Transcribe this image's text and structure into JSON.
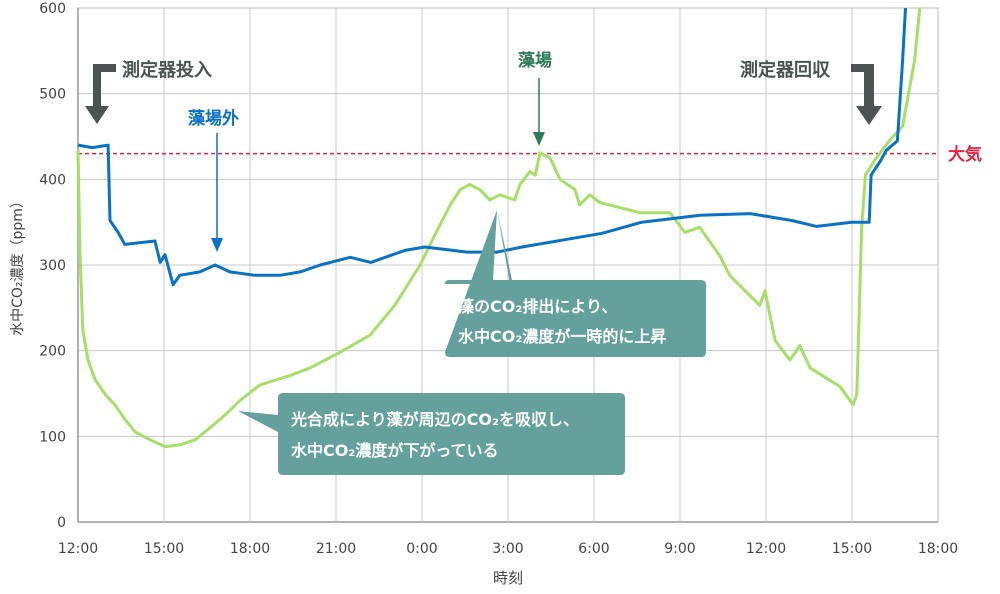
{
  "chart_data": {
    "type": "line",
    "xlabel": "時刻",
    "ylabel": "水中CO₂濃度（ppm）",
    "ylim": [
      0,
      600
    ],
    "yticks": [
      0,
      100,
      200,
      300,
      400,
      500,
      600
    ],
    "xticks": [
      "12:00",
      "15:00",
      "18:00",
      "21:00",
      "0:00",
      "3:00",
      "6:00",
      "9:00",
      "12:00",
      "15:00",
      "18:00"
    ],
    "grid": true,
    "colors": {
      "outside": "#0a72c4",
      "seagrass": "#a6df68",
      "atmosphere": "#e8213f",
      "callout": "#64a09c",
      "marker": "#4d5352",
      "seagrass_label": "#2e7a5a"
    },
    "reference_line": {
      "label": "大気",
      "value": 430
    },
    "series": [
      {
        "name": "藻場外",
        "points": [
          [
            "12:00",
            440
          ],
          [
            "12:30",
            437
          ],
          [
            "13:03",
            440
          ],
          [
            "13:07",
            352
          ],
          [
            "13:24",
            338
          ],
          [
            "13:38",
            324
          ],
          [
            "14:41",
            328
          ],
          [
            "14:52",
            303
          ],
          [
            "15:02",
            312
          ],
          [
            "15:19",
            277
          ],
          [
            "15:33",
            288
          ],
          [
            "16:15",
            292
          ],
          [
            "16:47",
            300
          ],
          [
            "17:18",
            292
          ],
          [
            "18:10",
            288
          ],
          [
            "19:03",
            288
          ],
          [
            "19:45",
            292
          ],
          [
            "20:27",
            300
          ],
          [
            "21:30",
            309
          ],
          [
            "22:13",
            303
          ],
          [
            "23:24",
            317
          ],
          [
            "0:06",
            321
          ],
          [
            "0:52",
            318
          ],
          [
            "1:34",
            315
          ],
          [
            "2:37",
            315
          ],
          [
            "3:29",
            321
          ],
          [
            "4:53",
            329
          ],
          [
            "6:17",
            337
          ],
          [
            "7:40",
            350
          ],
          [
            "9:42",
            358
          ],
          [
            "11:27",
            360
          ],
          [
            "12:54",
            352
          ],
          [
            "13:46",
            345
          ],
          [
            "14:59",
            350
          ],
          [
            "15:36",
            350
          ],
          [
            "15:40",
            405
          ],
          [
            "16:00",
            422
          ],
          [
            "16:12",
            434
          ],
          [
            "16:35",
            445
          ],
          [
            "16:46",
            539
          ],
          [
            "16:52",
            600
          ]
        ]
      },
      {
        "name": "藻場",
        "points": [
          [
            "12:00",
            434
          ],
          [
            "12:04",
            317
          ],
          [
            "12:10",
            224
          ],
          [
            "12:21",
            189
          ],
          [
            "12:36",
            166
          ],
          [
            "12:57",
            149
          ],
          [
            "13:17",
            137
          ],
          [
            "13:38",
            120
          ],
          [
            "14:00",
            105
          ],
          [
            "14:31",
            96
          ],
          [
            "15:02",
            88
          ],
          [
            "15:33",
            90
          ],
          [
            "16:05",
            96
          ],
          [
            "16:36",
            110
          ],
          [
            "17:08",
            125
          ],
          [
            "17:39",
            142
          ],
          [
            "18:21",
            160
          ],
          [
            "19:24",
            171
          ],
          [
            "20:06",
            180
          ],
          [
            "21:08",
            198
          ],
          [
            "22:11",
            218
          ],
          [
            "23:03",
            253
          ],
          [
            "23:56",
            300
          ],
          [
            "0:27",
            335
          ],
          [
            "0:59",
            370
          ],
          [
            "1:20",
            388
          ],
          [
            "1:40",
            394
          ],
          [
            "2:01",
            388
          ],
          [
            "2:22",
            376
          ],
          [
            "2:43",
            382
          ],
          [
            "3:14",
            376
          ],
          [
            "3:25",
            394
          ],
          [
            "3:46",
            409
          ],
          [
            "3:57",
            405
          ],
          [
            "4:07",
            431
          ],
          [
            "4:28",
            425
          ],
          [
            "4:49",
            400
          ],
          [
            "5:20",
            388
          ],
          [
            "5:30",
            370
          ],
          [
            "5:51",
            382
          ],
          [
            "6:12",
            373
          ],
          [
            "6:54",
            367
          ],
          [
            "7:36",
            361
          ],
          [
            "8:39",
            361
          ],
          [
            "9:10",
            338
          ],
          [
            "9:41",
            344
          ],
          [
            "10:23",
            311
          ],
          [
            "10:44",
            288
          ],
          [
            "11:16",
            270
          ],
          [
            "11:47",
            253
          ],
          [
            "11:58",
            270
          ],
          [
            "12:19",
            212
          ],
          [
            "12:50",
            189
          ],
          [
            "13:11",
            206
          ],
          [
            "13:32",
            180
          ],
          [
            "14:03",
            169
          ],
          [
            "14:35",
            158
          ],
          [
            "15:02",
            137
          ],
          [
            "15:10",
            149
          ],
          [
            "15:20",
            341
          ],
          [
            "15:28",
            405
          ],
          [
            "15:47",
            422
          ],
          [
            "16:18",
            445
          ],
          [
            "16:46",
            462
          ],
          [
            "17:11",
            539
          ],
          [
            "17:22",
            600
          ]
        ]
      }
    ],
    "annotations": {
      "install": "測定器投入",
      "retrieve": "測定器回収",
      "outside": "藻場外",
      "seagrass": "藻場",
      "callout_rise": [
        "藻のCO₂排出により、",
        "水中CO₂濃度が一時的に上昇"
      ],
      "callout_fall": [
        "光合成により藻が周辺のCO₂を吸収し、",
        "水中CO₂濃度が下がっている"
      ]
    }
  }
}
